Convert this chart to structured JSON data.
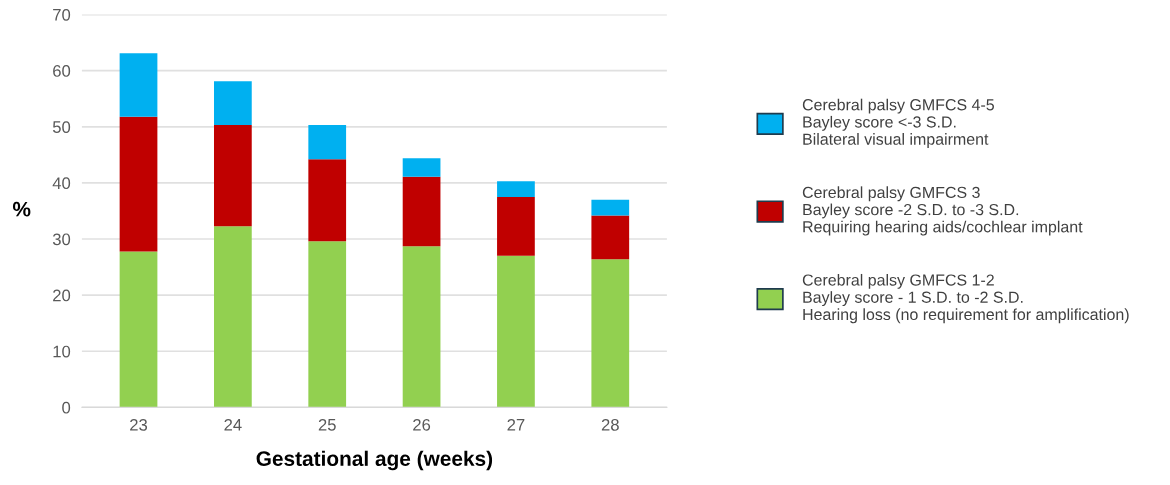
{
  "chart_data": {
    "type": "bar",
    "stacked": true,
    "xlabel": "Gestational age (weeks)",
    "ylabel": "%",
    "categories": [
      "23",
      "24",
      "25",
      "26",
      "27",
      "28"
    ],
    "series": [
      {
        "name": "Cerebral palsy GMFCS 1-2\nBayley score - 1 S.D. to -2 S.D.\nHearing loss (no requirement for amplification)",
        "color": "#92d050",
        "values": [
          27.8,
          32.3,
          29.6,
          28.7,
          27.0,
          26.4
        ]
      },
      {
        "name": "Cerebral palsy GMFCS 3\nBayley score -2 S.D. to -3 S.D.\nRequiring hearing aids/cochlear implant",
        "color": "#c00000",
        "values": [
          24.0,
          18.0,
          14.6,
          12.4,
          10.5,
          7.8
        ]
      },
      {
        "name": "Cerebral palsy GMFCS 4-5\nBayley score <-3 S.D.\nBilateral visual impairment",
        "color": "#00b0f0",
        "values": [
          11.3,
          7.8,
          6.1,
          3.3,
          2.8,
          2.8
        ]
      }
    ],
    "ylim": [
      0,
      70
    ],
    "yticks": [
      0,
      10,
      20,
      30,
      40,
      50,
      60,
      70
    ],
    "grid": "y",
    "legend": "right"
  }
}
